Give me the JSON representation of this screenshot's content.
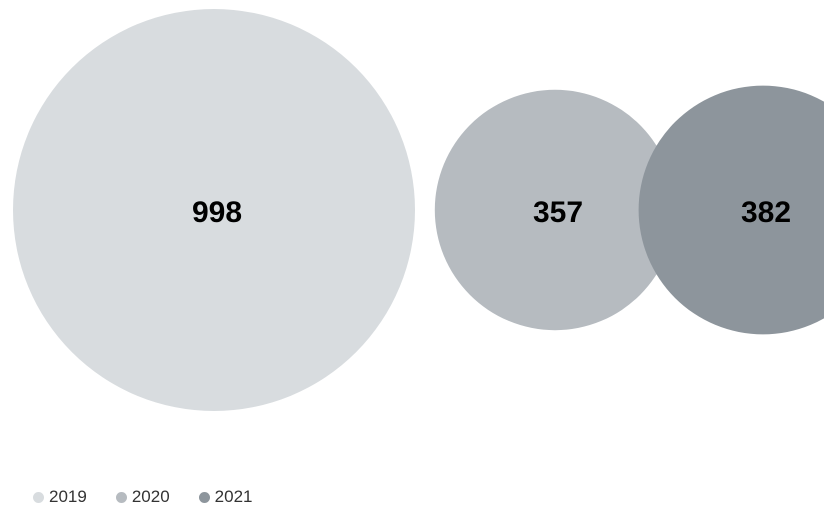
{
  "chart_data": {
    "type": "bubble",
    "title": "",
    "categories": [
      "2019",
      "2020",
      "2021"
    ],
    "values": [
      998,
      357,
      382
    ],
    "colors": [
      "#d8dcdf",
      "#b6bbc0",
      "#8d959c"
    ],
    "legend": {
      "placement": "bottom-left",
      "entries": [
        "2019",
        "2020",
        "2021"
      ]
    },
    "value_labels": [
      "998",
      "357",
      "382"
    ]
  }
}
